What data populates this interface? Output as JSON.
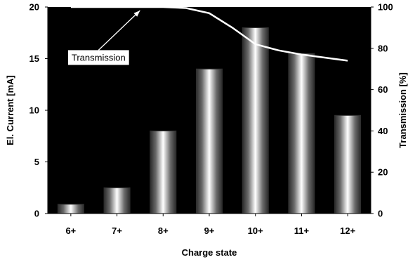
{
  "chart_data": {
    "type": "bar",
    "categories": [
      "6+",
      "7+",
      "8+",
      "9+",
      "10+",
      "11+",
      "12+"
    ],
    "series": [
      {
        "values": [
          0.9,
          2.5,
          8.0,
          14.0,
          18.0,
          15.5,
          9.5
        ]
      }
    ],
    "line_series": {
      "axis": "right",
      "x": [
        0.0,
        0.5,
        1.0,
        1.5,
        2.0,
        2.5,
        3.0,
        3.5,
        4.0,
        4.5,
        5.0,
        5.5,
        6.0
      ],
      "values": [
        100,
        100,
        100,
        100,
        100,
        99.5,
        97,
        90,
        82,
        79,
        77,
        75.5,
        74
      ]
    },
    "xlabel": "Charge state",
    "ylabel": "El. Current [mA]",
    "ylabel_right": "Transmission [%]",
    "ylim": [
      0,
      20
    ],
    "yticks": [
      0,
      5,
      10,
      15,
      20
    ],
    "ylim_right": [
      0,
      100
    ],
    "yticks_right": [
      0,
      20,
      40,
      60,
      80,
      100
    ],
    "grid": false,
    "annotation": {
      "text": "Transmission"
    },
    "colors": {
      "plot_background": "#000000",
      "bar_edge": "#303030",
      "bar_highlight": "#ffffff",
      "line": "#ffffff"
    }
  }
}
